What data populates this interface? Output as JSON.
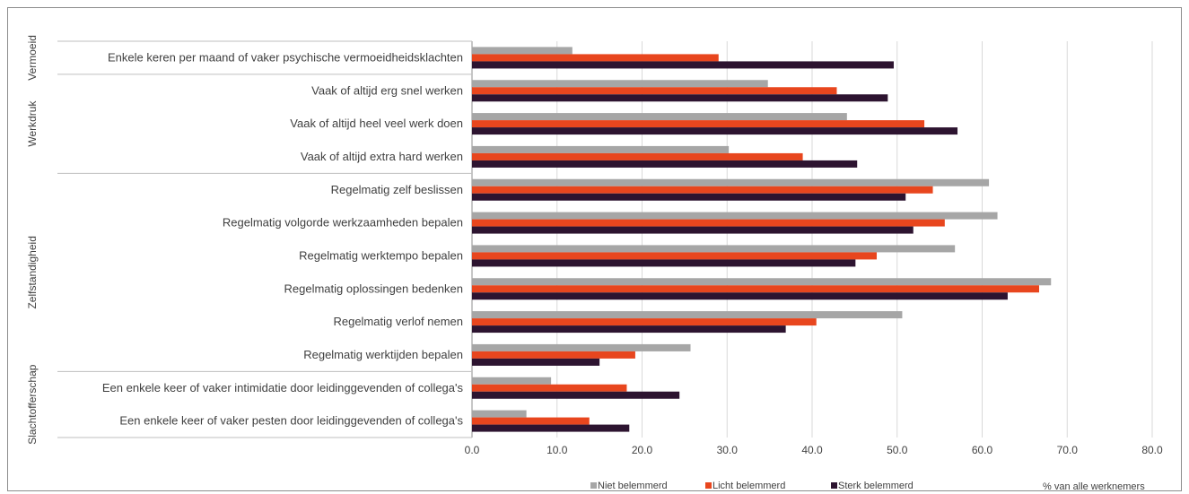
{
  "chart_data": {
    "type": "bar",
    "orientation": "horizontal",
    "title": "",
    "xlabel": "% van alle werknemers",
    "xlim": [
      0,
      80
    ],
    "xticks": [
      "0.0",
      "10.0",
      "20.0",
      "30.0",
      "40.0",
      "50.0",
      "60.0",
      "70.0",
      "80.0"
    ],
    "grid": true,
    "legend_position": "bottom",
    "colors": {
      "Niet belemmerd": "#a6a6a6",
      "Licht belemmerd": "#e8461e",
      "Sterk belemmerd": "#2d1430"
    },
    "groups": [
      {
        "name": "Vermoeid",
        "count": 1
      },
      {
        "name": "Werkdruk",
        "count": 3
      },
      {
        "name": "Zelfstandigheid",
        "count": 6
      },
      {
        "name": "Slachtofferschap",
        "count": 2
      }
    ],
    "categories": [
      "Enkele keren per maand of vaker psychische vermoeidheidsklachten",
      "Vaak of altijd erg snel werken",
      "Vaak of altijd heel veel werk doen",
      "Vaak of altijd extra hard werken",
      "Regelmatig zelf beslissen",
      "Regelmatig volgorde werkzaamheden bepalen",
      "Regelmatig werktempo bepalen",
      "Regelmatig oplossingen bedenken",
      "Regelmatig verlof nemen",
      "Regelmatig werktijden bepalen",
      "Een enkele keer of vaker intimidatie door leidinggevenden of collega's",
      "Een enkele keer of vaker pesten door leidinggevenden of collega's"
    ],
    "series": [
      {
        "name": "Niet belemmerd",
        "values": [
          11.8,
          34.8,
          44.1,
          30.2,
          60.8,
          61.8,
          56.8,
          68.1,
          50.6,
          25.7,
          9.3,
          6.4
        ]
      },
      {
        "name": "Licht belemmerd",
        "values": [
          29.0,
          42.9,
          53.2,
          38.9,
          54.2,
          55.6,
          47.6,
          66.7,
          40.5,
          19.2,
          18.2,
          13.8
        ]
      },
      {
        "name": "Sterk belemmerd",
        "values": [
          49.6,
          48.9,
          57.1,
          45.3,
          51.0,
          51.9,
          45.1,
          63.0,
          36.9,
          15.0,
          24.4,
          18.5
        ]
      }
    ]
  }
}
